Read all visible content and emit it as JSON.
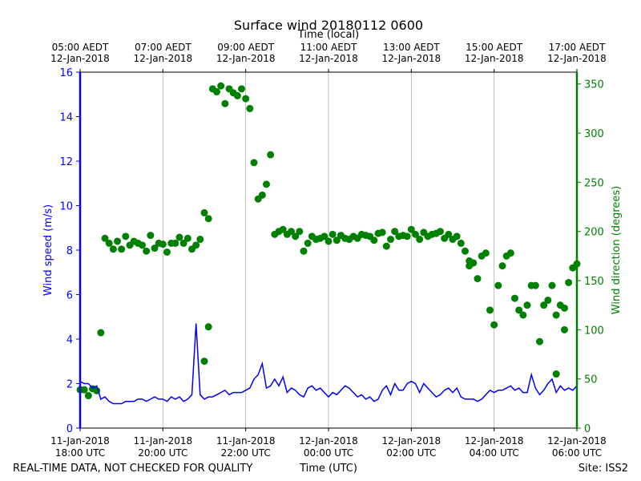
{
  "chart_data": {
    "type": "line+scatter",
    "title": "Surface wind 20180112 0600",
    "top_axis_label": "Time (local)",
    "bottom_axis_label": "Time (UTC)",
    "footer_left": "REAL-TIME DATA, NOT CHECKED FOR QUALITY",
    "footer_right": "Site: ISS2",
    "x_range_hours_utc": [
      18,
      30
    ],
    "top_ticks": [
      {
        "hour": 18,
        "line1": "05:00 AEDT",
        "line2": "12-Jan-2018"
      },
      {
        "hour": 20,
        "line1": "07:00 AEDT",
        "line2": "12-Jan-2018"
      },
      {
        "hour": 22,
        "line1": "09:00 AEDT",
        "line2": "12-Jan-2018"
      },
      {
        "hour": 24,
        "line1": "11:00 AEDT",
        "line2": "12-Jan-2018"
      },
      {
        "hour": 26,
        "line1": "13:00 AEDT",
        "line2": "12-Jan-2018"
      },
      {
        "hour": 28,
        "line1": "15:00 AEDT",
        "line2": "12-Jan-2018"
      },
      {
        "hour": 30,
        "line1": "17:00 AEDT",
        "line2": "12-Jan-2018"
      }
    ],
    "bottom_ticks": [
      {
        "hour": 18,
        "line1": "11-Jan-2018",
        "line2": "18:00 UTC"
      },
      {
        "hour": 20,
        "line1": "11-Jan-2018",
        "line2": "20:00 UTC"
      },
      {
        "hour": 22,
        "line1": "11-Jan-2018",
        "line2": "22:00 UTC"
      },
      {
        "hour": 24,
        "line1": "12-Jan-2018",
        "line2": "00:00 UTC"
      },
      {
        "hour": 26,
        "line1": "12-Jan-2018",
        "line2": "02:00 UTC"
      },
      {
        "hour": 28,
        "line1": "12-Jan-2018",
        "line2": "04:00 UTC"
      },
      {
        "hour": 30,
        "line1": "12-Jan-2018",
        "line2": "06:00 UTC"
      }
    ],
    "left_axis": {
      "label": "Wind speed (m/s)",
      "ylim": [
        0,
        16
      ],
      "ticks": [
        "0",
        "2",
        "4",
        "6",
        "8",
        "10",
        "12",
        "14",
        "16"
      ],
      "color": "#0000ff"
    },
    "right_axis": {
      "label": "Wind direction (degrees)",
      "ylim": [
        0,
        362
      ],
      "ticks": [
        "0",
        "50",
        "100",
        "150",
        "200",
        "250",
        "300",
        "350"
      ],
      "color": "#008000"
    },
    "speed_series": {
      "name": "Wind speed",
      "color": "#0000ff",
      "x": [
        18.0,
        18.1,
        18.2,
        18.3,
        18.4,
        18.5,
        18.6,
        18.7,
        18.8,
        18.9,
        19.0,
        19.1,
        19.2,
        19.3,
        19.4,
        19.5,
        19.6,
        19.7,
        19.8,
        19.9,
        20.0,
        20.1,
        20.2,
        20.3,
        20.4,
        20.5,
        20.6,
        20.7,
        20.8,
        20.9,
        21.0,
        21.1,
        21.2,
        21.3,
        21.4,
        21.5,
        21.6,
        21.7,
        21.8,
        21.9,
        22.0,
        22.1,
        22.2,
        22.3,
        22.4,
        22.5,
        22.6,
        22.7,
        22.8,
        22.9,
        23.0,
        23.1,
        23.2,
        23.3,
        23.4,
        23.5,
        23.6,
        23.7,
        23.8,
        23.9,
        24.0,
        24.1,
        24.2,
        24.3,
        24.4,
        24.5,
        24.6,
        24.7,
        24.8,
        24.9,
        25.0,
        25.1,
        25.2,
        25.3,
        25.4,
        25.5,
        25.6,
        25.7,
        25.8,
        25.9,
        26.0,
        26.1,
        26.2,
        26.3,
        26.4,
        26.5,
        26.6,
        26.7,
        26.8,
        26.9,
        27.0,
        27.1,
        27.2,
        27.3,
        27.4,
        27.5,
        27.6,
        27.7,
        27.8,
        27.9,
        28.0,
        28.1,
        28.2,
        28.3,
        28.4,
        28.5,
        28.6,
        28.7,
        28.8,
        28.9,
        29.0,
        29.1,
        29.2,
        29.3,
        29.4,
        29.5,
        29.6,
        29.7,
        29.8,
        29.9,
        30.0
      ],
      "values": [
        2.1,
        2.0,
        2.0,
        1.8,
        1.9,
        1.3,
        1.4,
        1.2,
        1.1,
        1.1,
        1.1,
        1.2,
        1.2,
        1.2,
        1.3,
        1.3,
        1.2,
        1.3,
        1.4,
        1.3,
        1.3,
        1.2,
        1.4,
        1.3,
        1.4,
        1.2,
        1.3,
        1.5,
        4.7,
        1.5,
        1.3,
        1.4,
        1.4,
        1.5,
        1.6,
        1.7,
        1.5,
        1.6,
        1.6,
        1.6,
        1.7,
        1.8,
        2.2,
        2.4,
        2.9,
        1.8,
        1.9,
        2.2,
        1.9,
        2.3,
        1.6,
        1.8,
        1.7,
        1.5,
        1.4,
        1.8,
        1.9,
        1.7,
        1.8,
        1.6,
        1.4,
        1.6,
        1.5,
        1.7,
        1.9,
        1.8,
        1.6,
        1.4,
        1.5,
        1.3,
        1.4,
        1.2,
        1.3,
        1.7,
        1.9,
        1.5,
        2.0,
        1.7,
        1.7,
        2.0,
        2.1,
        2.0,
        1.6,
        2.0,
        1.8,
        1.6,
        1.4,
        1.5,
        1.7,
        1.8,
        1.6,
        1.8,
        1.4,
        1.3,
        1.3,
        1.3,
        1.2,
        1.3,
        1.5,
        1.7,
        1.6,
        1.7,
        1.7,
        1.8,
        1.9,
        1.7,
        1.8,
        1.6,
        1.6,
        2.4,
        1.8,
        1.5,
        1.7,
        2.0,
        2.2,
        1.6,
        1.9,
        1.7,
        1.8,
        1.7,
        1.9
      ]
    },
    "direction_series": {
      "name": "Wind direction",
      "color": "#008000",
      "x": [
        18.0,
        18.1,
        18.2,
        18.3,
        18.4,
        18.5,
        18.6,
        18.7,
        18.8,
        18.9,
        19.0,
        19.1,
        19.2,
        19.3,
        19.4,
        19.5,
        19.6,
        19.7,
        19.8,
        19.9,
        20.0,
        20.1,
        20.2,
        20.3,
        20.4,
        20.5,
        20.6,
        20.7,
        20.8,
        20.9,
        21.0,
        21.1,
        21.2,
        21.3,
        21.4,
        21.5,
        21.6,
        21.7,
        21.8,
        21.9,
        22.0,
        22.1,
        22.2,
        22.3,
        22.4,
        22.5,
        22.6,
        22.7,
        22.8,
        22.9,
        23.0,
        23.1,
        23.2,
        23.3,
        23.4,
        23.5,
        23.6,
        23.7,
        23.8,
        23.9,
        24.0,
        24.1,
        24.2,
        24.3,
        24.4,
        24.5,
        24.6,
        24.7,
        24.8,
        24.9,
        25.0,
        25.1,
        25.2,
        25.3,
        25.4,
        25.5,
        25.6,
        25.7,
        25.8,
        25.9,
        26.0,
        26.1,
        26.2,
        26.3,
        26.4,
        26.5,
        26.6,
        26.7,
        26.8,
        26.9,
        27.0,
        27.1,
        27.2,
        27.3,
        27.4,
        27.5,
        27.6,
        27.7,
        27.8,
        27.9,
        28.0,
        28.1,
        28.2,
        28.3,
        28.4,
        28.5,
        28.6,
        28.7,
        28.8,
        28.9,
        29.0,
        29.1,
        29.2,
        29.3,
        29.4,
        29.5,
        29.6,
        29.7,
        29.8,
        29.9,
        30.0
      ],
      "values": [
        39,
        39,
        33,
        40,
        38,
        97,
        193,
        188,
        182,
        190,
        182,
        195,
        186,
        190,
        188,
        186,
        180,
        196,
        183,
        188,
        187,
        179,
        188,
        188,
        194,
        188,
        193,
        182,
        186,
        192,
        219,
        213,
        345,
        342,
        348,
        330,
        345,
        341,
        338,
        345,
        335,
        325,
        270,
        233,
        237,
        248,
        278,
        197,
        200,
        202,
        197,
        200,
        195,
        200,
        180,
        188,
        195,
        192,
        193,
        195,
        190,
        197,
        191,
        196,
        193,
        192,
        195,
        193,
        197,
        196,
        195,
        191,
        198,
        199,
        185,
        192,
        200,
        195,
        196,
        195,
        202,
        197,
        192,
        199,
        195,
        197,
        198,
        200,
        193,
        197,
        192,
        195,
        188,
        180,
        165,
        168,
        152,
        175,
        178,
        120,
        105,
        145,
        165,
        175,
        178,
        132,
        120,
        115,
        125,
        145,
        145,
        88,
        125,
        130,
        145,
        115,
        125,
        122,
        148,
        163,
        167
      ],
      "spikes": [
        {
          "x": 21.0,
          "value": 68
        },
        {
          "x": 21.1,
          "value": 103
        },
        {
          "x": 27.4,
          "value": 170
        },
        {
          "x": 29.5,
          "value": 55
        },
        {
          "x": 29.7,
          "value": 100
        }
      ]
    }
  }
}
